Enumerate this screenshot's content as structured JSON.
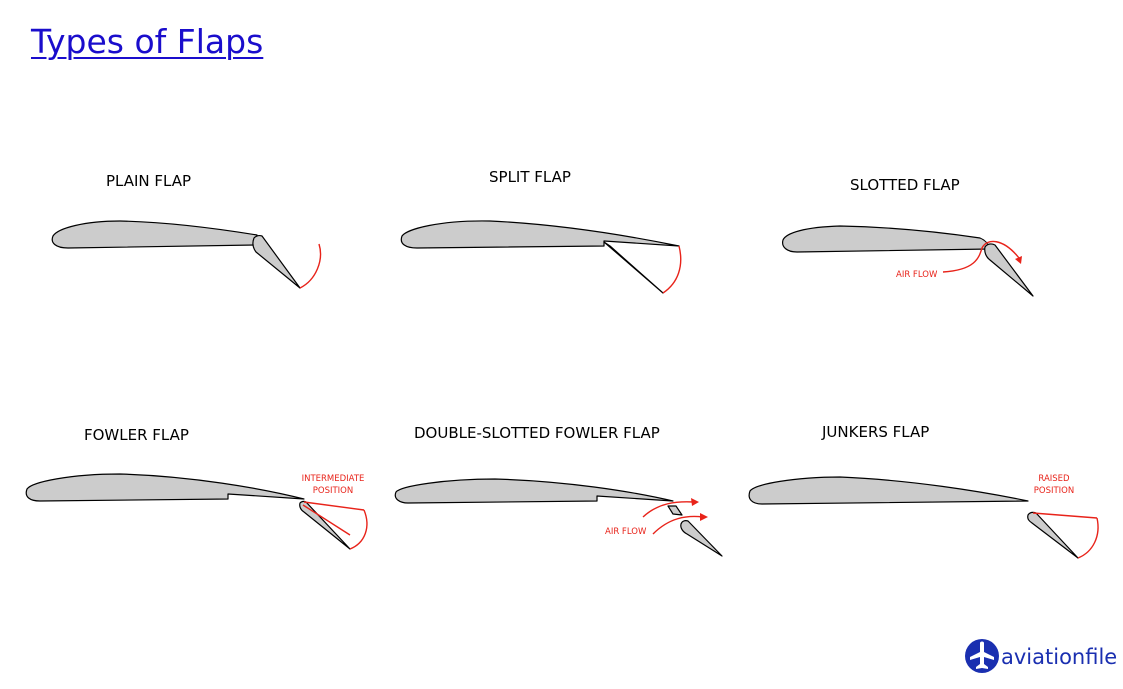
{
  "title": "Types of Flaps",
  "flaps": [
    {
      "label": "PLAIN FLAP"
    },
    {
      "label": "SPLIT FLAP"
    },
    {
      "label": "SLOTTED FLAP",
      "annotation": "AIR FLOW"
    },
    {
      "label": "FOWLER FLAP",
      "annotation_line1": "INTERMEDIATE",
      "annotation_line2": "POSITION"
    },
    {
      "label": "DOUBLE-SLOTTED FOWLER FLAP",
      "annotation": "AIR FLOW"
    },
    {
      "label": "JUNKERS FLAP",
      "annotation_line1": "RAISED",
      "annotation_line2": "POSITION"
    }
  ],
  "logo": {
    "text": "aviationfile",
    "icon": "airplane-icon"
  },
  "colors": {
    "title": "#1a0dcc",
    "annotation": "#e8231a",
    "wing_fill": "#cccccc",
    "logo": "#1a2fb0"
  }
}
